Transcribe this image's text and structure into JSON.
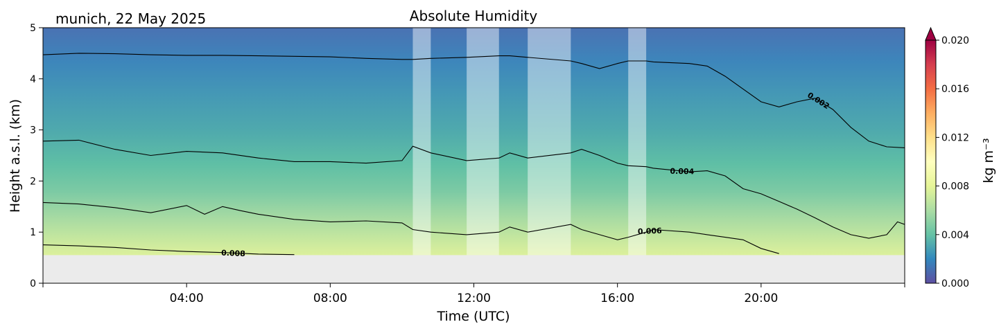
{
  "chart_data": {
    "type": "heatmap",
    "title": "Absolute Humidity",
    "location_label": "munich, 22 May 2025",
    "xlabel": "Time (UTC)",
    "ylabel": "Height a.s.l. (km)",
    "xlim_hours": [
      0,
      24
    ],
    "ylim_km": [
      0,
      5
    ],
    "x_ticks": [
      {
        "hour": 4,
        "label": "04:00"
      },
      {
        "hour": 8,
        "label": "08:00"
      },
      {
        "hour": 12,
        "label": "12:00"
      },
      {
        "hour": 16,
        "label": "16:00"
      },
      {
        "hour": 20,
        "label": "20:00"
      }
    ],
    "y_ticks": [
      {
        "km": 0,
        "label": "0"
      },
      {
        "km": 1,
        "label": "1"
      },
      {
        "km": 2,
        "label": "2"
      },
      {
        "km": 3,
        "label": "3"
      },
      {
        "km": 4,
        "label": "4"
      },
      {
        "km": 5,
        "label": "5"
      }
    ],
    "no_data_below_km": 0.55,
    "colorbar": {
      "label": "kg m⁻³",
      "range": [
        0.0,
        0.02
      ],
      "extend": "max",
      "ticks": [
        {
          "value": 0.0,
          "label": "0.000"
        },
        {
          "value": 0.004,
          "label": "0.004"
        },
        {
          "value": 0.008,
          "label": "0.008"
        },
        {
          "value": 0.012,
          "label": "0.012"
        },
        {
          "value": 0.016,
          "label": "0.016"
        },
        {
          "value": 0.02,
          "label": "0.020"
        }
      ],
      "colormap": [
        "#5e4fa2",
        "#3288bd",
        "#66c2a5",
        "#abdda4",
        "#e6f598",
        "#ffffbf",
        "#fee08b",
        "#fdae61",
        "#f46d43",
        "#d53e4f",
        "#9e0142"
      ]
    },
    "masked_periods_hours": [
      [
        10.3,
        10.8
      ],
      [
        11.8,
        12.7
      ],
      [
        13.5,
        14.7
      ],
      [
        16.3,
        16.8
      ]
    ],
    "contour_lines": [
      {
        "level": 0.002,
        "label": "0.002",
        "label_at_hour": 21.6,
        "points": [
          [
            0,
            4.47
          ],
          [
            1,
            4.5
          ],
          [
            2,
            4.49
          ],
          [
            3,
            4.47
          ],
          [
            4,
            4.46
          ],
          [
            5,
            4.46
          ],
          [
            6,
            4.45
          ],
          [
            7,
            4.44
          ],
          [
            8,
            4.43
          ],
          [
            9,
            4.4
          ],
          [
            10,
            4.38
          ],
          [
            10.3,
            4.38
          ],
          [
            10.8,
            4.4
          ],
          [
            11.8,
            4.42
          ],
          [
            12.7,
            4.45
          ],
          [
            13,
            4.45
          ],
          [
            13.5,
            4.42
          ],
          [
            14.7,
            4.35
          ],
          [
            15,
            4.3
          ],
          [
            15.5,
            4.2
          ],
          [
            16,
            4.3
          ],
          [
            16.3,
            4.35
          ],
          [
            16.8,
            4.35
          ],
          [
            17,
            4.33
          ],
          [
            18,
            4.3
          ],
          [
            18.5,
            4.25
          ],
          [
            19,
            4.05
          ],
          [
            19.5,
            3.8
          ],
          [
            20,
            3.55
          ],
          [
            20.5,
            3.45
          ],
          [
            21,
            3.55
          ],
          [
            21.5,
            3.62
          ],
          [
            22,
            3.4
          ],
          [
            22.5,
            3.05
          ],
          [
            23,
            2.78
          ],
          [
            23.5,
            2.67
          ],
          [
            24,
            2.65
          ]
        ]
      },
      {
        "level": 0.004,
        "label": "0.004",
        "label_at_hour": 17.8,
        "points": [
          [
            0,
            2.78
          ],
          [
            1,
            2.8
          ],
          [
            2,
            2.62
          ],
          [
            3,
            2.5
          ],
          [
            4,
            2.58
          ],
          [
            5,
            2.55
          ],
          [
            6,
            2.45
          ],
          [
            7,
            2.38
          ],
          [
            8,
            2.38
          ],
          [
            9,
            2.35
          ],
          [
            10,
            2.4
          ],
          [
            10.3,
            2.68
          ],
          [
            10.8,
            2.55
          ],
          [
            11.8,
            2.4
          ],
          [
            12.7,
            2.45
          ],
          [
            13,
            2.55
          ],
          [
            13.5,
            2.45
          ],
          [
            14.7,
            2.55
          ],
          [
            15,
            2.62
          ],
          [
            15.5,
            2.5
          ],
          [
            16,
            2.35
          ],
          [
            16.3,
            2.3
          ],
          [
            16.8,
            2.28
          ],
          [
            17,
            2.25
          ],
          [
            18,
            2.18
          ],
          [
            18.5,
            2.2
          ],
          [
            19,
            2.1
          ],
          [
            19.5,
            1.85
          ],
          [
            20,
            1.75
          ],
          [
            20.5,
            1.6
          ],
          [
            21,
            1.45
          ],
          [
            21.5,
            1.28
          ],
          [
            22,
            1.1
          ],
          [
            22.5,
            0.95
          ],
          [
            23,
            0.88
          ],
          [
            23.5,
            0.95
          ],
          [
            23.8,
            1.2
          ],
          [
            24,
            1.15
          ]
        ]
      },
      {
        "level": 0.006,
        "label": "0.006",
        "label_at_hour": 16.9,
        "points": [
          [
            0,
            1.58
          ],
          [
            1,
            1.55
          ],
          [
            2,
            1.48
          ],
          [
            3,
            1.38
          ],
          [
            4,
            1.52
          ],
          [
            4.5,
            1.35
          ],
          [
            5,
            1.5
          ],
          [
            5.5,
            1.42
          ],
          [
            6,
            1.35
          ],
          [
            7,
            1.25
          ],
          [
            8,
            1.2
          ],
          [
            9,
            1.22
          ],
          [
            10,
            1.18
          ],
          [
            10.3,
            1.05
          ],
          [
            10.8,
            1.0
          ],
          [
            11.8,
            0.95
          ],
          [
            12.7,
            1.0
          ],
          [
            13,
            1.1
          ],
          [
            13.5,
            1.0
          ],
          [
            14.7,
            1.15
          ],
          [
            15,
            1.05
          ],
          [
            15.5,
            0.95
          ],
          [
            16,
            0.85
          ],
          [
            16.3,
            0.9
          ],
          [
            16.8,
            1.0
          ],
          [
            17,
            1.05
          ],
          [
            18,
            1.0
          ],
          [
            18.5,
            0.95
          ],
          [
            19,
            0.9
          ],
          [
            19.5,
            0.85
          ],
          [
            20,
            0.68
          ],
          [
            20.5,
            0.58
          ]
        ]
      },
      {
        "level": 0.008,
        "label": "0.008",
        "label_at_hour": 5.3,
        "points": [
          [
            0,
            0.75
          ],
          [
            1,
            0.73
          ],
          [
            2,
            0.7
          ],
          [
            3,
            0.65
          ],
          [
            4,
            0.62
          ],
          [
            5,
            0.6
          ],
          [
            6,
            0.57
          ],
          [
            7,
            0.56
          ]
        ]
      }
    ]
  }
}
